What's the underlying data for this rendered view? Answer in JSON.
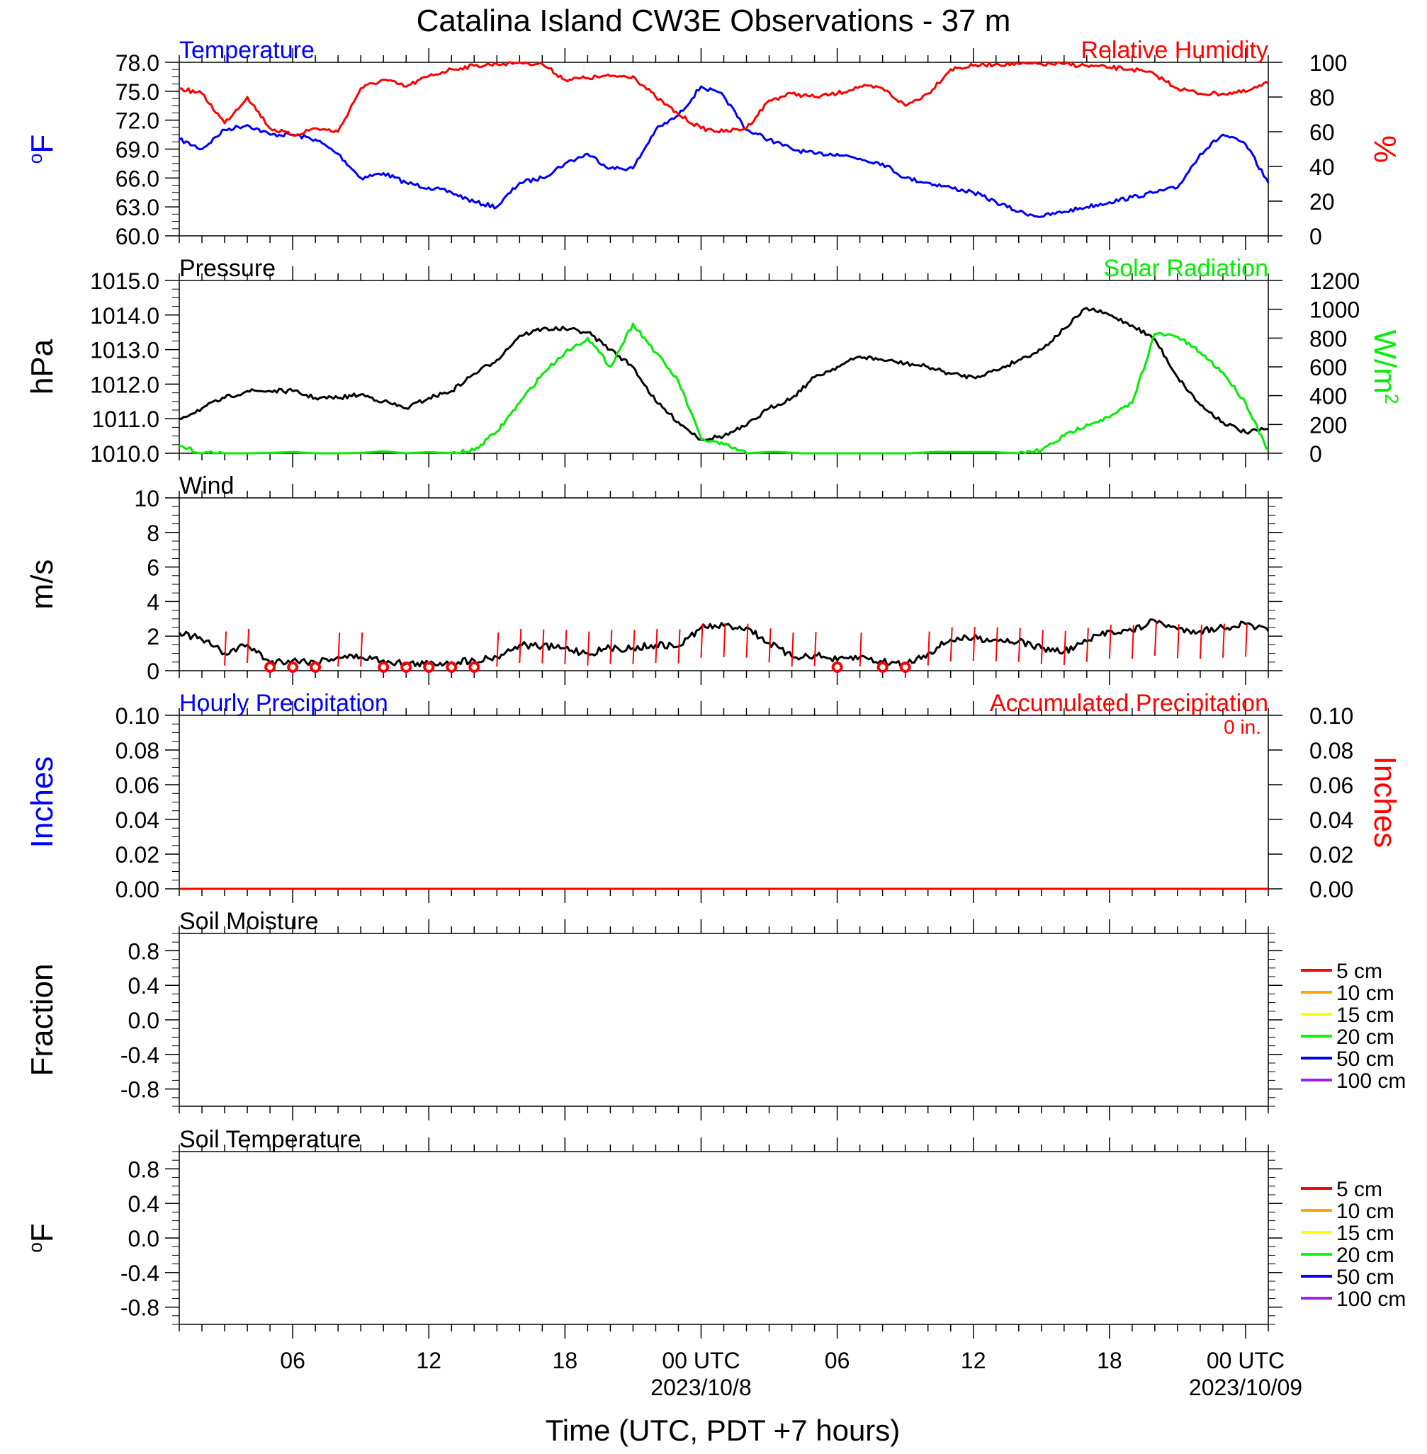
{
  "title": "Catalina Island CW3E Observations - 37 m",
  "xaxis": {
    "label": "Time (UTC, PDT +7 hours)",
    "start": "2023-10-07T01:00Z",
    "end": "2023-10-09T01:00Z",
    "ticks": [
      {
        "time": "2023-10-07T06:00Z",
        "label": "06",
        "date": ""
      },
      {
        "time": "2023-10-07T12:00Z",
        "label": "12",
        "date": ""
      },
      {
        "time": "2023-10-07T18:00Z",
        "label": "18",
        "date": ""
      },
      {
        "time": "2023-10-08T00:00Z",
        "label": "00 UTC",
        "date": "2023/10/8"
      },
      {
        "time": "2023-10-08T06:00Z",
        "label": "06",
        "date": ""
      },
      {
        "time": "2023-10-08T12:00Z",
        "label": "12",
        "date": ""
      },
      {
        "time": "2023-10-08T18:00Z",
        "label": "18",
        "date": ""
      },
      {
        "time": "2023-10-09T00:00Z",
        "label": "00 UTC",
        "date": "2023/10/09"
      }
    ]
  },
  "colors": {
    "blue": "#0000ff",
    "red": "#ff0000",
    "green": "#00ee00",
    "black": "#000000"
  },
  "chart_data": [
    {
      "type": "line",
      "title_left": "Temperature",
      "title_right": "Relative Humidity",
      "ylabel_left": "oF",
      "ylabel_right": "%",
      "ylim_left": [
        60,
        78
      ],
      "ylim_right": [
        0,
        100
      ],
      "yticks_left": [
        "60.0",
        "63.0",
        "66.0",
        "69.0",
        "72.0",
        "75.0",
        "78.0"
      ],
      "yticks_right": [
        "0",
        "20",
        "40",
        "60",
        "80",
        "100"
      ],
      "series": [
        {
          "name": "Temperature",
          "axis": "left",
          "color": "#0000ff",
          "x": [
            "2023-10-07T01:00Z",
            "2023-10-07T02:00Z",
            "2023-10-07T03:00Z",
            "2023-10-07T04:00Z",
            "2023-10-07T05:00Z",
            "2023-10-07T06:00Z",
            "2023-10-07T07:00Z",
            "2023-10-07T08:00Z",
            "2023-10-07T09:00Z",
            "2023-10-07T10:00Z",
            "2023-10-07T11:00Z",
            "2023-10-07T12:00Z",
            "2023-10-07T13:00Z",
            "2023-10-07T14:00Z",
            "2023-10-07T15:00Z",
            "2023-10-07T16:00Z",
            "2023-10-07T17:00Z",
            "2023-10-07T18:00Z",
            "2023-10-07T19:00Z",
            "2023-10-07T20:00Z",
            "2023-10-07T21:00Z",
            "2023-10-07T22:00Z",
            "2023-10-07T23:00Z",
            "2023-10-08T00:00Z",
            "2023-10-08T01:00Z",
            "2023-10-08T02:00Z",
            "2023-10-08T03:00Z",
            "2023-10-08T04:00Z",
            "2023-10-08T05:00Z",
            "2023-10-08T06:00Z",
            "2023-10-08T07:00Z",
            "2023-10-08T08:00Z",
            "2023-10-08T09:00Z",
            "2023-10-08T10:00Z",
            "2023-10-08T11:00Z",
            "2023-10-08T12:00Z",
            "2023-10-08T13:00Z",
            "2023-10-08T14:00Z",
            "2023-10-08T15:00Z",
            "2023-10-08T16:00Z",
            "2023-10-08T17:00Z",
            "2023-10-08T18:00Z",
            "2023-10-08T19:00Z",
            "2023-10-08T20:00Z",
            "2023-10-08T21:00Z",
            "2023-10-08T22:00Z",
            "2023-10-08T23:00Z",
            "2023-10-09T00:00Z",
            "2023-10-09T01:00Z"
          ],
          "values": [
            70.0,
            69.0,
            71.0,
            71.5,
            70.5,
            70.5,
            70.0,
            68.5,
            66.0,
            66.5,
            65.5,
            65.0,
            64.5,
            63.5,
            63.0,
            65.5,
            66.0,
            67.5,
            68.5,
            67.0,
            67.0,
            71.0,
            72.5,
            75.5,
            74.5,
            71.0,
            70.0,
            69.0,
            68.5,
            68.5,
            68.0,
            67.5,
            66.0,
            65.5,
            65.0,
            64.5,
            63.5,
            62.5,
            62.0,
            62.5,
            63.0,
            63.5,
            64.0,
            64.5,
            65.0,
            68.5,
            70.5,
            69.5,
            65.5
          ]
        },
        {
          "name": "Relative Humidity",
          "axis": "right",
          "color": "#ff0000",
          "x": [
            "2023-10-07T01:00Z",
            "2023-10-07T02:00Z",
            "2023-10-07T03:00Z",
            "2023-10-07T04:00Z",
            "2023-10-07T05:00Z",
            "2023-10-07T06:00Z",
            "2023-10-07T07:00Z",
            "2023-10-07T08:00Z",
            "2023-10-07T09:00Z",
            "2023-10-07T10:00Z",
            "2023-10-07T11:00Z",
            "2023-10-07T12:00Z",
            "2023-10-07T13:00Z",
            "2023-10-07T14:00Z",
            "2023-10-07T15:00Z",
            "2023-10-07T16:00Z",
            "2023-10-07T17:00Z",
            "2023-10-07T18:00Z",
            "2023-10-07T19:00Z",
            "2023-10-07T20:00Z",
            "2023-10-07T21:00Z",
            "2023-10-07T22:00Z",
            "2023-10-07T23:00Z",
            "2023-10-08T00:00Z",
            "2023-10-08T01:00Z",
            "2023-10-08T02:00Z",
            "2023-10-08T03:00Z",
            "2023-10-08T04:00Z",
            "2023-10-08T05:00Z",
            "2023-10-08T06:00Z",
            "2023-10-08T07:00Z",
            "2023-10-08T08:00Z",
            "2023-10-08T09:00Z",
            "2023-10-08T10:00Z",
            "2023-10-08T11:00Z",
            "2023-10-08T12:00Z",
            "2023-10-08T13:00Z",
            "2023-10-08T14:00Z",
            "2023-10-08T15:00Z",
            "2023-10-08T16:00Z",
            "2023-10-08T17:00Z",
            "2023-10-08T18:00Z",
            "2023-10-08T19:00Z",
            "2023-10-08T20:00Z",
            "2023-10-08T21:00Z",
            "2023-10-08T22:00Z",
            "2023-10-08T23:00Z",
            "2023-10-09T00:00Z",
            "2023-10-09T01:00Z"
          ],
          "values": [
            85,
            82,
            65,
            80,
            62,
            58,
            62,
            60,
            85,
            90,
            86,
            92,
            96,
            98,
            99,
            100,
            99,
            90,
            91,
            92,
            92,
            80,
            70,
            62,
            60,
            62,
            78,
            82,
            80,
            82,
            86,
            85,
            75,
            82,
            96,
            98,
            99,
            99,
            99,
            99,
            98,
            97,
            96,
            93,
            85,
            82,
            82,
            83,
            88
          ]
        }
      ]
    },
    {
      "type": "line",
      "title_left": "Pressure",
      "title_right": "Solar Radiation",
      "ylabel_left": "hPa",
      "ylabel_right": "W/m2",
      "ylim_left": [
        1010,
        1015
      ],
      "ylim_right": [
        0,
        1200
      ],
      "yticks_left": [
        "1010.0",
        "1011.0",
        "1012.0",
        "1013.0",
        "1014.0",
        "1015.0"
      ],
      "yticks_right": [
        "0",
        "200",
        "400",
        "600",
        "800",
        "1000",
        "1200"
      ],
      "series": [
        {
          "name": "Pressure",
          "axis": "left",
          "color": "#000000",
          "x": [
            "2023-10-07T01:00Z",
            "2023-10-07T02:00Z",
            "2023-10-07T03:00Z",
            "2023-10-07T04:00Z",
            "2023-10-07T05:00Z",
            "2023-10-07T06:00Z",
            "2023-10-07T07:00Z",
            "2023-10-07T08:00Z",
            "2023-10-07T09:00Z",
            "2023-10-07T10:00Z",
            "2023-10-07T11:00Z",
            "2023-10-07T12:00Z",
            "2023-10-07T13:00Z",
            "2023-10-07T14:00Z",
            "2023-10-07T15:00Z",
            "2023-10-07T16:00Z",
            "2023-10-07T17:00Z",
            "2023-10-07T18:00Z",
            "2023-10-07T19:00Z",
            "2023-10-07T20:00Z",
            "2023-10-07T21:00Z",
            "2023-10-07T22:00Z",
            "2023-10-07T23:00Z",
            "2023-10-08T00:00Z",
            "2023-10-08T01:00Z",
            "2023-10-08T02:00Z",
            "2023-10-08T03:00Z",
            "2023-10-08T04:00Z",
            "2023-10-08T05:00Z",
            "2023-10-08T06:00Z",
            "2023-10-08T07:00Z",
            "2023-10-08T08:00Z",
            "2023-10-08T09:00Z",
            "2023-10-08T10:00Z",
            "2023-10-08T11:00Z",
            "2023-10-08T12:00Z",
            "2023-10-08T13:00Z",
            "2023-10-08T14:00Z",
            "2023-10-08T15:00Z",
            "2023-10-08T16:00Z",
            "2023-10-08T17:00Z",
            "2023-10-08T18:00Z",
            "2023-10-08T19:00Z",
            "2023-10-08T20:00Z",
            "2023-10-08T21:00Z",
            "2023-10-08T22:00Z",
            "2023-10-08T23:00Z",
            "2023-10-09T00:00Z",
            "2023-10-09T01:00Z"
          ],
          "values": [
            1011.0,
            1011.3,
            1011.6,
            1011.8,
            1011.8,
            1011.8,
            1011.6,
            1011.6,
            1011.7,
            1011.5,
            1011.3,
            1011.6,
            1011.8,
            1012.3,
            1012.7,
            1013.4,
            1013.6,
            1013.6,
            1013.5,
            1013.0,
            1012.5,
            1011.5,
            1010.9,
            1010.4,
            1010.5,
            1010.8,
            1011.3,
            1011.6,
            1012.2,
            1012.5,
            1012.8,
            1012.7,
            1012.6,
            1012.5,
            1012.3,
            1012.2,
            1012.4,
            1012.7,
            1013.0,
            1013.6,
            1014.2,
            1014.0,
            1013.7,
            1013.3,
            1012.2,
            1011.4,
            1010.9,
            1010.6,
            1010.7
          ]
        },
        {
          "name": "Solar Radiation",
          "axis": "right",
          "color": "#00ee00",
          "x": [
            "2023-10-07T01:00Z",
            "2023-10-07T02:00Z",
            "2023-10-07T03:00Z",
            "2023-10-07T13:00Z",
            "2023-10-07T14:00Z",
            "2023-10-07T15:00Z",
            "2023-10-07T16:00Z",
            "2023-10-07T17:00Z",
            "2023-10-07T18:00Z",
            "2023-10-07T19:00Z",
            "2023-10-07T20:00Z",
            "2023-10-07T21:00Z",
            "2023-10-07T22:00Z",
            "2023-10-07T23:00Z",
            "2023-10-08T00:00Z",
            "2023-10-08T01:00Z",
            "2023-10-08T02:00Z",
            "2023-10-08T14:00Z",
            "2023-10-08T15:00Z",
            "2023-10-08T16:00Z",
            "2023-10-08T17:00Z",
            "2023-10-08T18:00Z",
            "2023-10-08T19:00Z",
            "2023-10-08T20:00Z",
            "2023-10-08T21:00Z",
            "2023-10-08T22:00Z",
            "2023-10-08T23:00Z",
            "2023-10-09T00:00Z",
            "2023-10-09T01:00Z"
          ],
          "values": [
            50,
            0,
            0,
            0,
            20,
            150,
            350,
            550,
            700,
            800,
            600,
            900,
            700,
            500,
            100,
            60,
            0,
            0,
            20,
            120,
            200,
            250,
            350,
            830,
            810,
            700,
            560,
            350,
            20
          ]
        }
      ]
    },
    {
      "type": "line",
      "title_left": "Wind",
      "ylabel_left": "m/s",
      "ylim_left": [
        0,
        10
      ],
      "yticks_left": [
        "0",
        "2",
        "4",
        "6",
        "8",
        "10"
      ],
      "series": [
        {
          "name": "Wind",
          "axis": "left",
          "color": "#000000",
          "x": [
            "2023-10-07T01:00Z",
            "2023-10-07T02:00Z",
            "2023-10-07T03:00Z",
            "2023-10-07T04:00Z",
            "2023-10-07T05:00Z",
            "2023-10-07T06:00Z",
            "2023-10-07T07:00Z",
            "2023-10-07T08:00Z",
            "2023-10-07T09:00Z",
            "2023-10-07T10:00Z",
            "2023-10-07T11:00Z",
            "2023-10-07T12:00Z",
            "2023-10-07T13:00Z",
            "2023-10-07T14:00Z",
            "2023-10-07T15:00Z",
            "2023-10-07T16:00Z",
            "2023-10-07T17:00Z",
            "2023-10-07T18:00Z",
            "2023-10-07T19:00Z",
            "2023-10-07T20:00Z",
            "2023-10-07T21:00Z",
            "2023-10-07T22:00Z",
            "2023-10-07T23:00Z",
            "2023-10-08T00:00Z",
            "2023-10-08T01:00Z",
            "2023-10-08T02:00Z",
            "2023-10-08T03:00Z",
            "2023-10-08T04:00Z",
            "2023-10-08T05:00Z",
            "2023-10-08T06:00Z",
            "2023-10-08T07:00Z",
            "2023-10-08T08:00Z",
            "2023-10-08T09:00Z",
            "2023-10-08T10:00Z",
            "2023-10-08T11:00Z",
            "2023-10-08T12:00Z",
            "2023-10-08T13:00Z",
            "2023-10-08T14:00Z",
            "2023-10-08T15:00Z",
            "2023-10-08T16:00Z",
            "2023-10-08T17:00Z",
            "2023-10-08T18:00Z",
            "2023-10-08T19:00Z",
            "2023-10-08T20:00Z",
            "2023-10-08T21:00Z",
            "2023-10-08T22:00Z",
            "2023-10-08T23:00Z",
            "2023-10-09T00:00Z",
            "2023-10-09T01:00Z"
          ],
          "values": [
            2.2,
            1.8,
            1.0,
            1.5,
            0.5,
            0.6,
            0.5,
            0.8,
            0.8,
            0.6,
            0.4,
            0.4,
            0.5,
            0.6,
            0.8,
            1.5,
            1.4,
            1.3,
            1.0,
            1.3,
            1.3,
            1.5,
            1.4,
            2.5,
            2.6,
            2.5,
            1.6,
            0.8,
            0.9,
            0.6,
            0.8,
            0.5,
            0.4,
            1.0,
            1.8,
            1.9,
            1.8,
            1.7,
            1.3,
            1.1,
            1.7,
            2.3,
            2.3,
            2.9,
            2.4,
            2.3,
            2.5,
            2.7,
            2.3
          ]
        }
      ]
    },
    {
      "type": "line",
      "title_left": "Hourly Precipitation",
      "title_right": "Accumulated Precipitation",
      "annotation": "0 in.",
      "ylabel_left": "Inches",
      "ylabel_right": "Inches",
      "ylim_left": [
        0,
        0.1
      ],
      "ylim_right": [
        0,
        0.1
      ],
      "yticks_left": [
        "0.00",
        "0.02",
        "0.04",
        "0.06",
        "0.08",
        "0.10"
      ],
      "yticks_right": [
        "0.00",
        "0.02",
        "0.04",
        "0.06",
        "0.08",
        "0.10"
      ],
      "series": [
        {
          "name": "Hourly Precipitation",
          "axis": "left",
          "color": "#0000ff",
          "x": [
            "2023-10-07T01:00Z",
            "2023-10-09T01:00Z"
          ],
          "values": [
            0,
            0
          ]
        },
        {
          "name": "Accumulated Precipitation",
          "axis": "right",
          "color": "#ff0000",
          "x": [
            "2023-10-07T01:00Z",
            "2023-10-09T01:00Z"
          ],
          "values": [
            0,
            0
          ]
        }
      ]
    },
    {
      "type": "line",
      "title_left": "Soil Moisture",
      "ylabel_left": "Fraction",
      "ylim_left": [
        -1,
        1
      ],
      "yticks_left": [
        "-0.8",
        "-0.4",
        "0.0",
        "0.4",
        "0.8"
      ],
      "legend": [
        {
          "name": "5 cm",
          "color": "#ff0000"
        },
        {
          "name": "10 cm",
          "color": "#ffa500"
        },
        {
          "name": "15 cm",
          "color": "#ffff00"
        },
        {
          "name": "20 cm",
          "color": "#00ff00"
        },
        {
          "name": "50 cm",
          "color": "#0000ff"
        },
        {
          "name": "100 cm",
          "color": "#a020f0"
        }
      ],
      "series": []
    },
    {
      "type": "line",
      "title_left": "Soil Temperature",
      "ylabel_left": "oF",
      "ylim_left": [
        -1,
        1
      ],
      "yticks_left": [
        "-0.8",
        "-0.4",
        "0.0",
        "0.4",
        "0.8"
      ],
      "legend": [
        {
          "name": "5 cm",
          "color": "#ff0000"
        },
        {
          "name": "10 cm",
          "color": "#ffa500"
        },
        {
          "name": "15 cm",
          "color": "#ffff00"
        },
        {
          "name": "20 cm",
          "color": "#00ff00"
        },
        {
          "name": "50 cm",
          "color": "#0000ff"
        },
        {
          "name": "100 cm",
          "color": "#a020f0"
        }
      ],
      "series": []
    }
  ]
}
